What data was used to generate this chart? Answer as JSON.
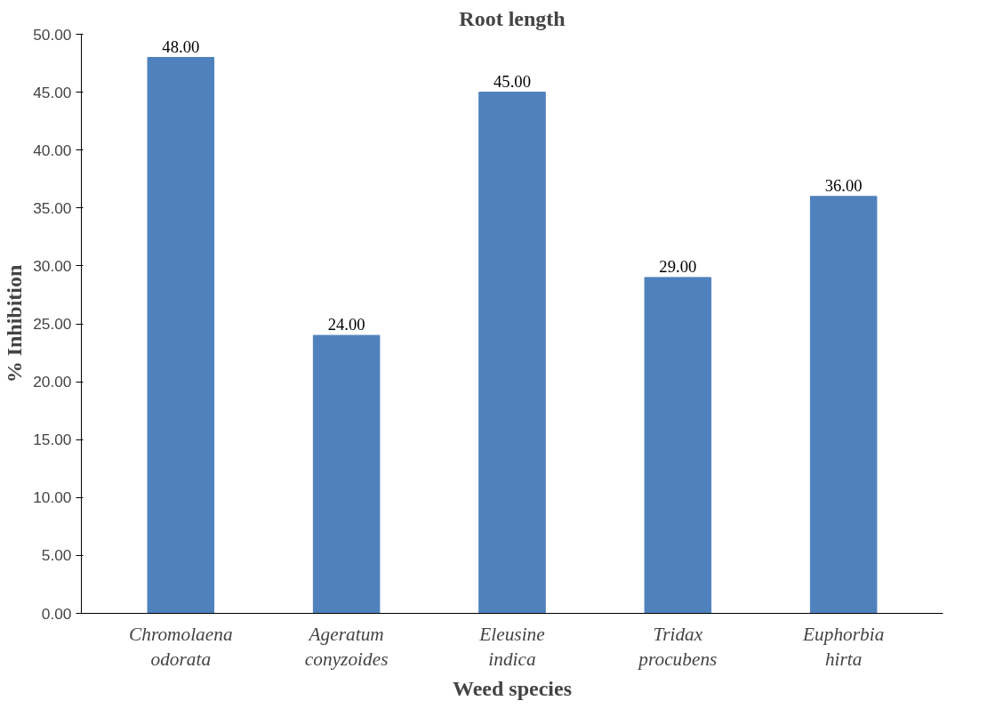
{
  "chart_data": {
    "type": "bar",
    "title": "Root length",
    "xlabel": "Weed species",
    "ylabel": "% Inhibition",
    "categories": [
      "Chromolaena odorata",
      "Ageratum conyzoides",
      "Eleusine indica",
      "Tridax procubens",
      "Euphorbia hirta"
    ],
    "values": [
      48,
      24,
      45,
      29,
      36
    ],
    "value_labels": [
      "48.00",
      "24.00",
      "45.00",
      "29.00",
      "36.00"
    ],
    "color": "#4f81bd",
    "ylim": [
      0,
      50
    ],
    "yticks": [
      {
        "value": 0,
        "label": "0.00"
      },
      {
        "value": 5,
        "label": "5.00"
      },
      {
        "value": 10,
        "label": "10.00"
      },
      {
        "value": 15,
        "label": "15.00"
      },
      {
        "value": 20,
        "label": "20.00"
      },
      {
        "value": 25,
        "label": "25.00"
      },
      {
        "value": 30,
        "label": "30.00"
      },
      {
        "value": 35,
        "label": "35.00"
      },
      {
        "value": 40,
        "label": "40.00"
      },
      {
        "value": 45,
        "label": "45.00"
      },
      {
        "value": 50,
        "label": "50.00"
      }
    ],
    "grid": false
  }
}
